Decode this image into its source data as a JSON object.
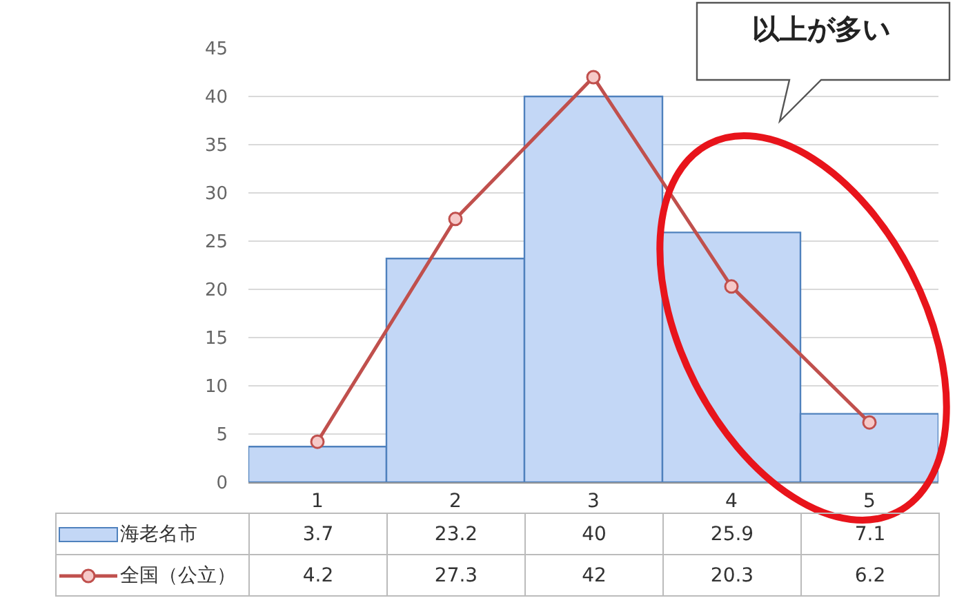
{
  "chart_data": {
    "type": "bar",
    "categories": [
      "1",
      "2",
      "3",
      "4",
      "5"
    ],
    "series": [
      {
        "name": "海老名市",
        "color": "#c3d7f6",
        "values": [
          3.7,
          23.2,
          40,
          25.9,
          7.1
        ]
      },
      {
        "name": "全国（公立）",
        "type": "line",
        "color": "#c0504d",
        "values": [
          4.2,
          27.3,
          42,
          20.3,
          6.2
        ]
      }
    ],
    "ylim": [
      0,
      45
    ],
    "yticks": [
      0,
      5,
      10,
      15,
      20,
      25,
      30,
      35,
      40,
      45
    ],
    "grid": "y",
    "legend": "bottom",
    "marker": "circle",
    "data_labels": true,
    "annotations": [
      "以上が多い"
    ]
  }
}
